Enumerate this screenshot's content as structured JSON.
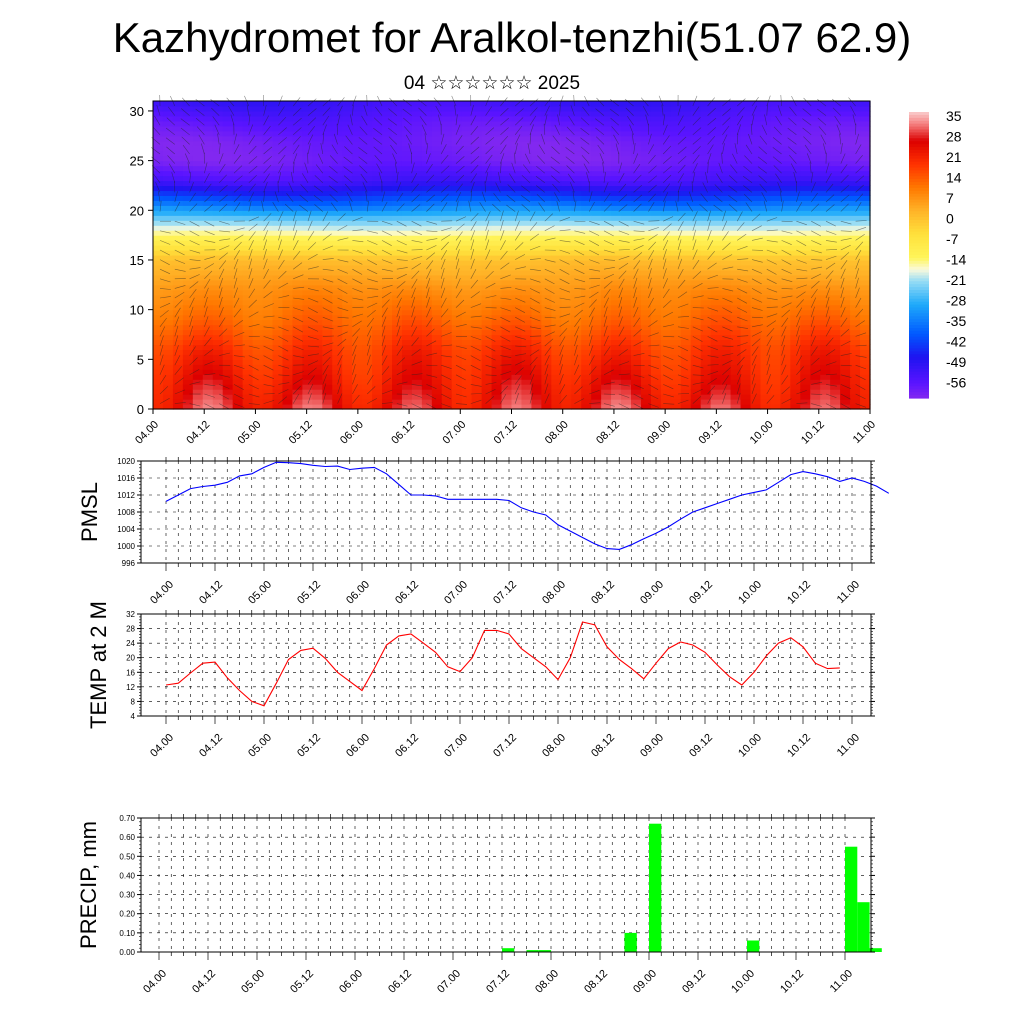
{
  "title": "Kazhydromet for Aralkol-tenzhi(51.07 62.9)",
  "subtitle": "04 ☆☆☆☆☆☆ 2025",
  "colors": {
    "pmsl": "#0000ff",
    "temp": "#ff0000",
    "precip": "#00ff00",
    "axis": "#000000"
  },
  "chart_data": [
    {
      "type": "heatmap",
      "title": "Kazhydromet for Aralkol-tenzhi(51.07 62.9)",
      "subtitle": "04 ☆☆☆☆☆☆ 2025",
      "x_ticks": [
        "04.00",
        "04.12",
        "05.00",
        "05.12",
        "06.00",
        "06.12",
        "07.00",
        "07.12",
        "08.00",
        "08.12",
        "09.00",
        "09.12",
        "10.00",
        "10.12",
        "11.00"
      ],
      "y_ticks": [
        0,
        5,
        10,
        15,
        20,
        25,
        30
      ],
      "ylim": [
        0,
        31
      ],
      "colorbar_labels": [
        "35",
        "28",
        "21",
        "14",
        "7",
        "0",
        "-7",
        "-14",
        "-21",
        "-28",
        "-35",
        "-42",
        "-49",
        "-56"
      ],
      "colorbar_range": [
        -60,
        38
      ],
      "profile_levels": [
        0,
        3,
        6,
        9,
        12,
        15,
        17,
        19,
        21,
        23,
        25,
        27,
        29,
        31
      ],
      "profile_values": [
        28,
        24,
        20,
        14,
        9,
        2,
        -10,
        -22,
        -38,
        -52,
        -58,
        -58,
        -55,
        -50
      ],
      "day_amplitude": 6,
      "wind_barbs": true
    },
    {
      "type": "line",
      "ylabel": "PMSL",
      "ylim": [
        996,
        1020
      ],
      "y_ticks": [
        996,
        1000,
        1004,
        1008,
        1012,
        1016,
        1020
      ],
      "x_ticks": [
        "04.00",
        "04.12",
        "05.00",
        "05.12",
        "06.00",
        "06.12",
        "07.00",
        "07.12",
        "08.00",
        "08.12",
        "09.00",
        "09.12",
        "10.00",
        "10.12",
        "11.00"
      ],
      "x_step_hours": 3,
      "series": [
        {
          "values": [
            1010.5,
            1012,
            1013.5,
            1014,
            1014.3,
            1015,
            1016.5,
            1017,
            1018.5,
            1019.7,
            1019.6,
            1019.4,
            1019,
            1018.7,
            1018.8,
            1018,
            1018.3,
            1018.5,
            1017,
            1014.5,
            1012,
            1012,
            1011.8,
            1011,
            1011,
            1011,
            1011,
            1011,
            1010.7,
            1009,
            1008,
            1007.3,
            1005,
            1003.5,
            1002,
            1000.5,
            999.4,
            999.2,
            1000.3,
            1001.7,
            1003,
            1004.5,
            1006.3,
            1008,
            1009,
            1010,
            1011,
            1012,
            1012.6,
            1013.2,
            1015,
            1016.8,
            1017.5,
            1017,
            1016.3,
            1015.2,
            1016,
            1015.2,
            1014.1,
            1012.4
          ]
        }
      ]
    },
    {
      "type": "line",
      "ylabel": "TEMP at 2 M",
      "ylim": [
        4,
        32
      ],
      "y_ticks": [
        4,
        8,
        12,
        16,
        20,
        24,
        28,
        32
      ],
      "x_ticks": [
        "04.00",
        "04.12",
        "05.00",
        "05.12",
        "06.00",
        "06.12",
        "07.00",
        "07.12",
        "08.00",
        "08.12",
        "09.00",
        "09.12",
        "10.00",
        "10.12",
        "11.00"
      ],
      "x_step_hours": 3,
      "series": [
        {
          "values": [
            12.5,
            13,
            15.8,
            18.5,
            18.8,
            14.5,
            11,
            8,
            6.8,
            13,
            19.5,
            22,
            22.6,
            19.8,
            16,
            13.5,
            11,
            17,
            23.5,
            26,
            26.5,
            24,
            21.5,
            17.5,
            16.2,
            20,
            27.5,
            27.5,
            26.5,
            22.5,
            20,
            17.5,
            14,
            20,
            29.8,
            29,
            23,
            19.5,
            17,
            14.2,
            18.5,
            22.5,
            24.3,
            23.5,
            21.5,
            18,
            14.8,
            12.5,
            16,
            20.5,
            24,
            25.5,
            23,
            18.5,
            17,
            17.2
          ]
        }
      ]
    },
    {
      "type": "bar",
      "ylabel": "PRECIP, mm",
      "ylim": [
        0,
        0.7
      ],
      "y_ticks": [
        "0.00",
        "0.10",
        "0.20",
        "0.30",
        "0.40",
        "0.50",
        "0.60",
        "0.70"
      ],
      "x_ticks": [
        "04.00",
        "04.12",
        "05.00",
        "05.12",
        "06.00",
        "06.12",
        "07.00",
        "07.12",
        "08.00",
        "08.12",
        "09.00",
        "09.12",
        "10.00",
        "10.12",
        "11.00"
      ],
      "x_step_hours": 3,
      "values": [
        0,
        0,
        0,
        0,
        0,
        0,
        0,
        0,
        0,
        0,
        0,
        0,
        0,
        0,
        0,
        0,
        0,
        0,
        0,
        0,
        0,
        0,
        0,
        0,
        0,
        0,
        0,
        0,
        0.02,
        0,
        0.01,
        0.01,
        0,
        0,
        0,
        0,
        0,
        0,
        0.1,
        0,
        0.67,
        0,
        0,
        0,
        0,
        0,
        0,
        0,
        0.06,
        0,
        0,
        0,
        0,
        0,
        0,
        0,
        0.55,
        0.26,
        0.02
      ]
    }
  ]
}
